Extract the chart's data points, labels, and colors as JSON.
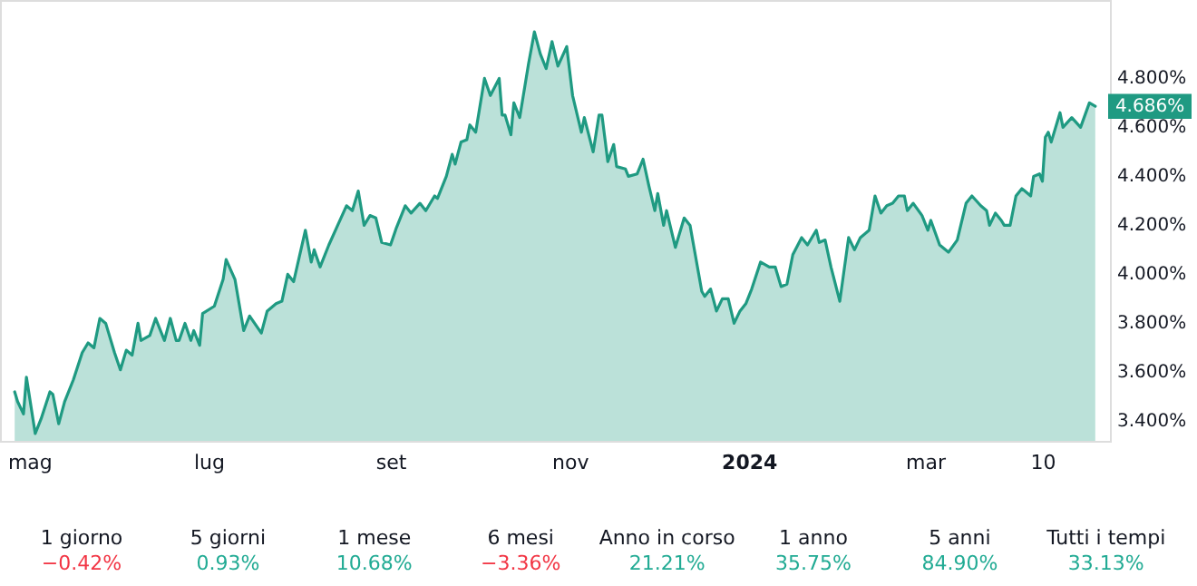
{
  "chart_data": {
    "type": "area",
    "xlim": [
      "2023-04-21",
      "2024-05-03"
    ],
    "xticks": [
      {
        "value": "2023-05-01",
        "label": "mag"
      },
      {
        "value": "2023-07-01",
        "label": "lug"
      },
      {
        "value": "2023-09-01",
        "label": "set"
      },
      {
        "value": "2023-11-01",
        "label": "nov"
      },
      {
        "value": "2024-01-01",
        "label": "2024"
      },
      {
        "value": "2024-03-01",
        "label": "mar"
      },
      {
        "value": "2024-04-10",
        "label": "10"
      }
    ],
    "ylim": [
      3.32,
      5.12
    ],
    "yticks": [
      {
        "value": 3.4,
        "label": "3.400%"
      },
      {
        "value": 3.6,
        "label": "3.600%"
      },
      {
        "value": 3.8,
        "label": "3.800%"
      },
      {
        "value": 4.0,
        "label": "4.000%"
      },
      {
        "value": 4.2,
        "label": "4.200%"
      },
      {
        "value": 4.4,
        "label": "4.400%"
      },
      {
        "value": 4.6,
        "label": "4.600%"
      },
      {
        "value": 4.8,
        "label": "4.800%"
      }
    ],
    "grid": false,
    "line_style": "solid",
    "series": [
      {
        "color": "#1f9a82",
        "x": [
          "2023-04-26",
          "2023-04-27",
          "2023-04-29",
          "2023-04-30",
          "2023-05-03",
          "2023-05-05",
          "2023-05-08",
          "2023-05-09",
          "2023-05-11",
          "2023-05-13",
          "2023-05-16",
          "2023-05-19",
          "2023-05-21",
          "2023-05-23",
          "2023-05-25",
          "2023-05-27",
          "2023-05-30",
          "2023-06-01",
          "2023-06-03",
          "2023-06-05",
          "2023-06-07",
          "2023-06-08",
          "2023-06-11",
          "2023-06-13",
          "2023-06-16",
          "2023-06-18",
          "2023-06-20",
          "2023-06-21",
          "2023-06-23",
          "2023-06-25",
          "2023-06-26",
          "2023-06-28",
          "2023-06-29",
          "2023-07-03",
          "2023-07-06",
          "2023-07-07",
          "2023-07-10",
          "2023-07-13",
          "2023-07-15",
          "2023-07-19",
          "2023-07-21",
          "2023-07-24",
          "2023-07-26",
          "2023-07-28",
          "2023-07-30",
          "2023-08-03",
          "2023-08-05",
          "2023-08-06",
          "2023-08-08",
          "2023-08-11",
          "2023-08-14",
          "2023-08-17",
          "2023-08-19",
          "2023-08-21",
          "2023-08-23",
          "2023-08-25",
          "2023-08-27",
          "2023-08-29",
          "2023-09-01",
          "2023-09-03",
          "2023-09-06",
          "2023-09-08",
          "2023-09-11",
          "2023-09-13",
          "2023-09-16",
          "2023-09-17",
          "2023-09-20",
          "2023-09-22",
          "2023-09-23",
          "2023-09-25",
          "2023-09-27",
          "2023-09-28",
          "2023-09-30",
          "2023-10-03",
          "2023-10-05",
          "2023-10-08",
          "2023-10-09",
          "2023-10-10",
          "2023-10-12",
          "2023-10-13",
          "2023-10-15",
          "2023-10-18",
          "2023-10-20",
          "2023-10-22",
          "2023-10-24",
          "2023-10-26",
          "2023-10-28",
          "2023-10-31",
          "2023-11-02",
          "2023-11-05",
          "2023-11-06",
          "2023-11-09",
          "2023-11-11",
          "2023-11-12",
          "2023-11-14",
          "2023-11-16",
          "2023-11-17",
          "2023-11-20",
          "2023-11-21",
          "2023-11-24",
          "2023-11-26",
          "2023-11-28",
          "2023-11-30",
          "2023-12-01",
          "2023-12-03",
          "2023-12-04",
          "2023-12-07",
          "2023-12-10",
          "2023-12-12",
          "2023-12-16",
          "2023-12-17",
          "2023-12-19",
          "2023-12-21",
          "2023-12-23",
          "2023-12-25",
          "2023-12-27",
          "2023-12-29",
          "2023-12-31",
          "2024-01-02",
          "2024-01-05",
          "2024-01-08",
          "2024-01-10",
          "2024-01-12",
          "2024-01-14",
          "2024-01-16",
          "2024-01-19",
          "2024-01-21",
          "2024-01-24",
          "2024-01-25",
          "2024-01-27",
          "2024-01-29",
          "2024-02-01",
          "2024-02-04",
          "2024-02-06",
          "2024-02-08",
          "2024-02-11",
          "2024-02-13",
          "2024-02-15",
          "2024-02-17",
          "2024-02-19",
          "2024-02-21",
          "2024-02-23",
          "2024-02-24",
          "2024-02-26",
          "2024-02-29",
          "2024-03-02",
          "2024-03-03",
          "2024-03-06",
          "2024-03-09",
          "2024-03-12",
          "2024-03-15",
          "2024-03-17",
          "2024-03-20",
          "2024-03-22",
          "2024-03-23",
          "2024-03-25",
          "2024-03-27",
          "2024-03-28",
          "2024-03-30",
          "2024-04-01",
          "2024-04-03",
          "2024-04-04",
          "2024-04-06",
          "2024-04-07",
          "2024-04-09",
          "2024-04-10",
          "2024-04-11",
          "2024-04-12",
          "2024-04-13",
          "2024-04-16",
          "2024-04-17",
          "2024-04-20",
          "2024-04-23",
          "2024-04-26",
          "2024-04-28"
        ],
        "values": [
          3.52,
          3.48,
          3.43,
          3.58,
          3.35,
          3.41,
          3.52,
          3.51,
          3.39,
          3.48,
          3.57,
          3.68,
          3.72,
          3.7,
          3.82,
          3.8,
          3.68,
          3.61,
          3.69,
          3.67,
          3.8,
          3.73,
          3.75,
          3.82,
          3.73,
          3.82,
          3.73,
          3.73,
          3.8,
          3.73,
          3.77,
          3.71,
          3.84,
          3.87,
          3.98,
          4.06,
          3.98,
          3.77,
          3.83,
          3.76,
          3.85,
          3.88,
          3.89,
          4.0,
          3.97,
          4.18,
          4.05,
          4.1,
          4.03,
          4.12,
          4.2,
          4.28,
          4.26,
          4.34,
          4.2,
          4.24,
          4.23,
          4.13,
          4.12,
          4.19,
          4.28,
          4.25,
          4.29,
          4.26,
          4.32,
          4.31,
          4.4,
          4.49,
          4.45,
          4.54,
          4.55,
          4.61,
          4.58,
          4.8,
          4.73,
          4.8,
          4.65,
          4.65,
          4.57,
          4.7,
          4.64,
          4.86,
          4.99,
          4.9,
          4.84,
          4.95,
          4.85,
          4.93,
          4.73,
          4.58,
          4.64,
          4.5,
          4.65,
          4.65,
          4.46,
          4.53,
          4.44,
          4.43,
          4.4,
          4.41,
          4.47,
          4.36,
          4.26,
          4.33,
          4.2,
          4.26,
          4.11,
          4.23,
          4.2,
          3.93,
          3.91,
          3.94,
          3.85,
          3.9,
          3.9,
          3.8,
          3.85,
          3.88,
          3.94,
          4.05,
          4.03,
          4.03,
          3.95,
          3.96,
          4.08,
          4.15,
          4.12,
          4.18,
          4.13,
          4.14,
          4.03,
          3.89,
          4.15,
          4.1,
          4.15,
          4.18,
          4.32,
          4.25,
          4.28,
          4.29,
          4.32,
          4.32,
          4.26,
          4.29,
          4.24,
          4.18,
          4.22,
          4.12,
          4.09,
          4.14,
          4.29,
          4.32,
          4.28,
          4.26,
          4.2,
          4.25,
          4.22,
          4.2,
          4.2,
          4.32,
          4.35,
          4.34,
          4.32,
          4.4,
          4.41,
          4.38,
          4.56,
          4.58,
          4.54,
          4.66,
          4.6,
          4.64,
          4.6,
          4.7,
          4.686
        ]
      }
    ],
    "annotations": [
      {
        "text": "4.686%",
        "x": "2024-04-28",
        "y": 4.686
      },
      "1 giorno",
      "−0.42%",
      "5 giorni",
      "0.93%",
      "1 mese",
      "10.68%",
      "6 mesi",
      "−3.36%",
      "Anno in corso",
      "21.21%",
      "1 anno",
      "35.75%",
      "5 anni",
      "84.90%",
      "Tutti i tempi",
      "33.13%"
    ]
  }
}
